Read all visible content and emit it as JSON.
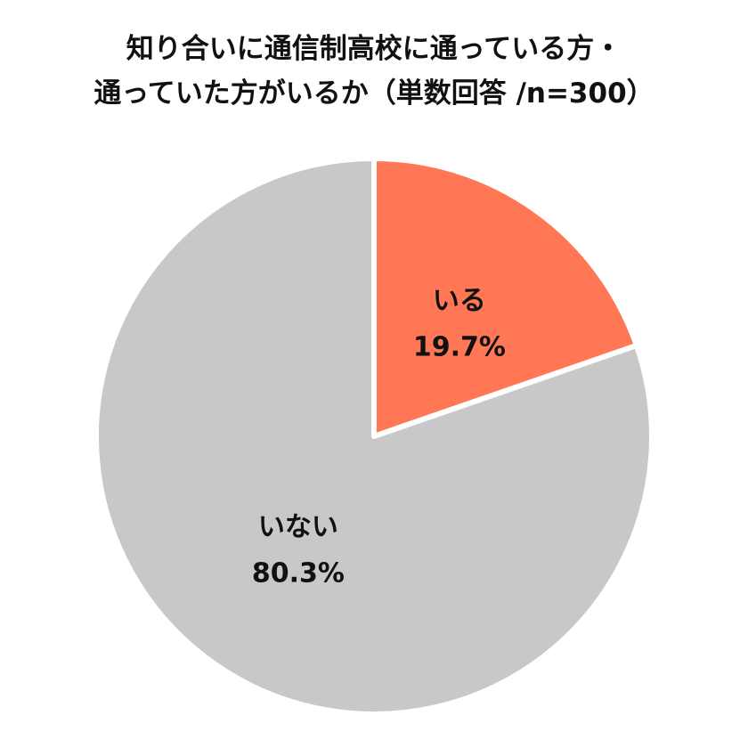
{
  "chart_title": {
    "line1": "知り合いに通信制高校に通っている方・",
    "line2": "通っていた方がいるか（単数回答 /n=300）"
  },
  "chart_data": {
    "type": "pie",
    "title": "知り合いに通信制高校に通っている方・通っていた方がいるか（単数回答 /n=300）",
    "slices": [
      {
        "label": "いる",
        "value": 19.7,
        "value_label": "19.7%",
        "color": "#FF7755"
      },
      {
        "label": "いない",
        "value": 80.3,
        "value_label": "80.3%",
        "color": "#C8C8C8"
      }
    ],
    "start_angle": "12 o'clock",
    "direction": "clockwise",
    "legend": "none"
  }
}
